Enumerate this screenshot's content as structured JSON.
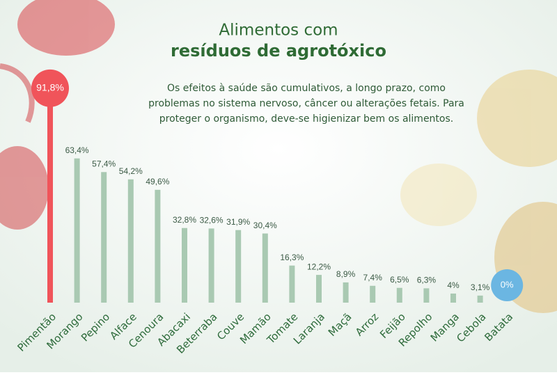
{
  "chart_data": {
    "type": "bar",
    "title": [
      "Alimentos com",
      "resíduos de agrotóxico"
    ],
    "subtitle": [
      "Os efeitos à saúde são cumulativos, a longo prazo, como",
      "problemas no sistema nervoso, câncer ou alterações fetais. Para",
      "proteger o organismo, deve-se higienizar bem os alimentos."
    ],
    "categories": [
      "Pimentão",
      "Morango",
      "Pepino",
      "Alface",
      "Cenoura",
      "Abacaxi",
      "Beterraba",
      "Couve",
      "Mamão",
      "Tomate",
      "Laranja",
      "Maçã",
      "Arroz",
      "Feijão",
      "Repolho",
      "Manga",
      "Cebola",
      "Batata"
    ],
    "values": [
      91.8,
      63.4,
      57.4,
      54.2,
      49.6,
      32.8,
      32.6,
      31.9,
      30.4,
      16.3,
      12.2,
      8.9,
      7.4,
      6.5,
      6.3,
      4,
      3.1,
      0
    ],
    "value_labels": [
      "91,8%",
      "63,4%",
      "57,4%",
      "54,2%",
      "49,6%",
      "32,8%",
      "32,6%",
      "31,9%",
      "30,4%",
      "16,3%",
      "12,2%",
      "8,9%",
      "7,4%",
      "6,5%",
      "6,3%",
      "4%",
      "3,1%",
      "0%"
    ],
    "color": "#a9c9b2",
    "colors": [
      "#f0545a",
      "#a9c9b2",
      "#a9c9b2",
      "#a9c9b2",
      "#a9c9b2",
      "#a9c9b2",
      "#a9c9b2",
      "#a9c9b2",
      "#a9c9b2",
      "#a9c9b2",
      "#a9c9b2",
      "#a9c9b2",
      "#a9c9b2",
      "#a9c9b2",
      "#a9c9b2",
      "#a9c9b2",
      "#a9c9b2",
      "#6bb6e2"
    ]
  }
}
